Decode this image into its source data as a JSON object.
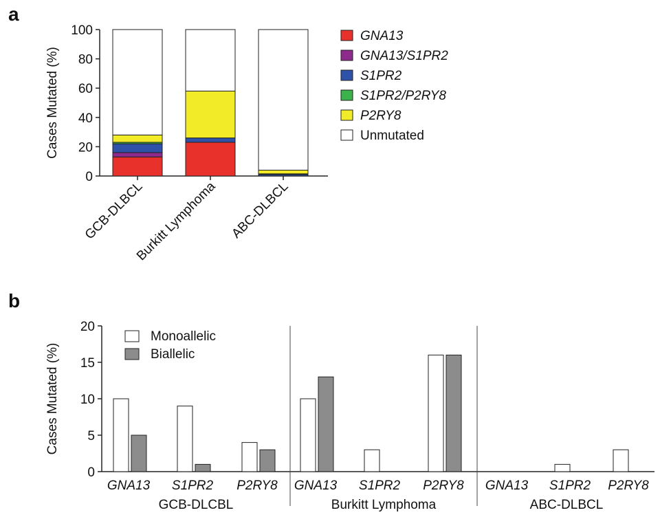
{
  "chart_data": [
    {
      "panel_label": "a",
      "type": "bar",
      "stacked": true,
      "categories": [
        "GCB-DLBCL",
        "Burkitt Lymphoma",
        "ABC-DLBCL"
      ],
      "ylabel": "Cases Mutated (%)",
      "ylim": [
        0,
        100
      ],
      "yticks": [
        "0",
        "20",
        "40",
        "60",
        "80",
        "100"
      ],
      "legend_position": "right",
      "series": [
        {
          "name": "GNA13",
          "italic": true,
          "color": "#e8312a",
          "values": [
            13,
            23,
            0
          ]
        },
        {
          "name": "GNA13/S1PR2",
          "italic": true,
          "color": "#8e2a8c",
          "values": [
            3,
            0,
            0
          ]
        },
        {
          "name": "S1PR2",
          "italic": true,
          "color": "#2d52a8",
          "values": [
            6,
            3,
            1
          ]
        },
        {
          "name": "S1PR2/P2RY8",
          "italic": true,
          "color": "#3bb34a",
          "values": [
            1,
            0,
            0.5
          ]
        },
        {
          "name": "P2RY8",
          "italic": true,
          "color": "#f2ec28",
          "values": [
            5,
            32,
            2.5
          ]
        },
        {
          "name": "Unmutated",
          "italic": false,
          "color": "#ffffff",
          "values": [
            72,
            42,
            96
          ]
        }
      ]
    },
    {
      "panel_label": "b",
      "type": "bar",
      "grouped": true,
      "ylabel": "Cases Mutated (%)",
      "ylim": [
        0,
        20
      ],
      "yticks": [
        "0",
        "5",
        "10",
        "15",
        "20"
      ],
      "legend_position": "top-left",
      "groups": [
        {
          "name": "GCB-DLCBL",
          "categories": [
            "GNA13",
            "S1PR2",
            "P2RY8"
          ]
        },
        {
          "name": "Burkitt Lymphoma",
          "categories": [
            "GNA13",
            "S1PR2",
            "P2RY8"
          ]
        },
        {
          "name": "ABC-DLBCL",
          "categories": [
            "GNA13",
            "S1PR2",
            "P2RY8"
          ]
        }
      ],
      "series": [
        {
          "name": "Monoallelic",
          "color": "#ffffff",
          "values": [
            10,
            9,
            4,
            10,
            3,
            16,
            0,
            1,
            3
          ]
        },
        {
          "name": "Biallelic",
          "color": "#8c8c8c",
          "values": [
            5,
            1,
            3,
            13,
            0,
            16,
            0,
            0,
            0
          ]
        }
      ]
    }
  ]
}
